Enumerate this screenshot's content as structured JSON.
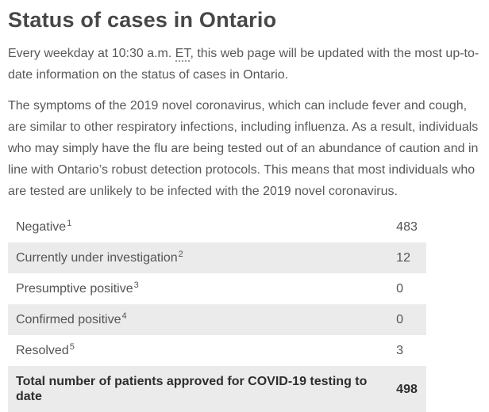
{
  "page": {
    "title": "Status of cases in Ontario",
    "intro": {
      "before_abbr": "Every weekday at 10:30 a.m. ",
      "abbr": "ET",
      "after_abbr": ", this web page will be updated with the most up-to-date information on the status of cases in Ontario."
    },
    "symptoms_paragraph": "The symptoms of the 2019 novel coronavirus, which can include fever and cough, are similar to other respiratory infections, including influenza. As a result, individuals who may simply have the flu are being tested out of an abundance of caution and in line with Ontario’s robust detection protocols. This means that most individuals who are tested are unlikely to be infected with the 2019 novel coronavirus."
  },
  "table": {
    "rows": [
      {
        "label": "Negative",
        "footnote": "1",
        "value": "483"
      },
      {
        "label": "Currently under investigation",
        "footnote": "2",
        "value": "12"
      },
      {
        "label": "Presumptive positive",
        "footnote": "3",
        "value": "0"
      },
      {
        "label": "Confirmed positive",
        "footnote": "4",
        "value": "0"
      },
      {
        "label": "Resolved",
        "footnote": "5",
        "value": "3"
      }
    ],
    "total": {
      "label": "Total number of patients approved for COVID-19 testing to date",
      "value": "498"
    }
  },
  "colors": {
    "heading_text": "#474747",
    "body_text": "#595959",
    "row_stripe": "#ebebeb",
    "total_text": "#2e2e2e"
  }
}
